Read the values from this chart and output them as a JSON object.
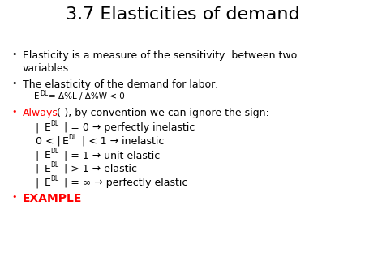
{
  "title": "3.7 Elasticities of demand",
  "title_fontsize": 16,
  "background_color": "#ffffff",
  "text_color": "#000000",
  "red_color": "#ff0000",
  "body_size": 9.0,
  "small_size": 7.5,
  "bullet_size": 8.0,
  "sub_lines": [
    "| E_DL | = 0 → perfectly inelastic",
    "0 < | E_DL | < 1 → inelastic",
    "| E_DL | = 1 → unit elastic",
    "| E_DL | > 1 → elastic",
    "| E_DL | = ∞ → perfectly elastic"
  ]
}
